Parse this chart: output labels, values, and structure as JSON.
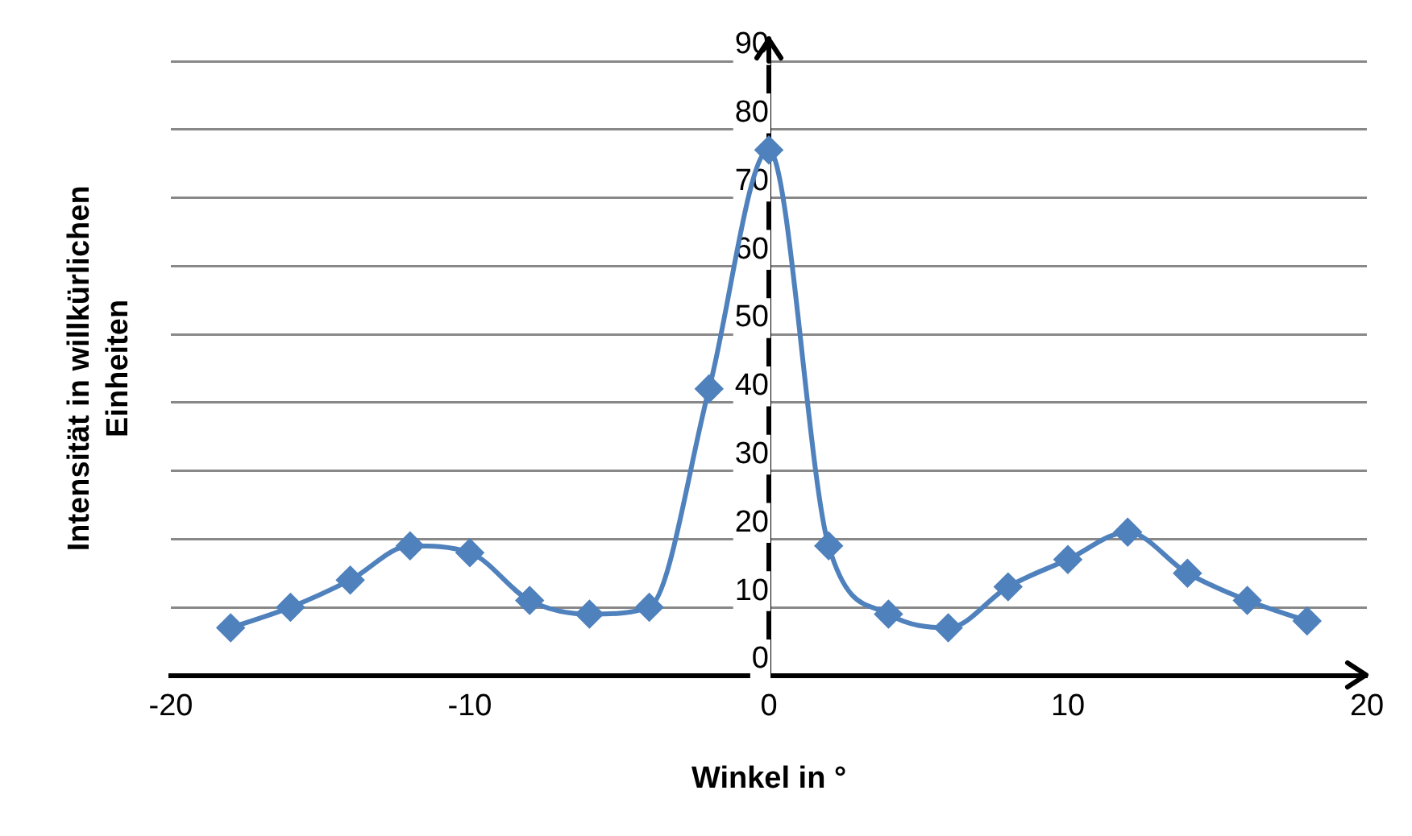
{
  "chart_data": {
    "type": "line",
    "xlabel": "Winkel in °",
    "ylabel": "Intensität in willkürlichen\nEinheiten",
    "series": [
      {
        "color": "#4f81bd",
        "x": [
          -18,
          -16,
          -14,
          -12,
          -10,
          -8,
          -6,
          -4,
          -2,
          0,
          2,
          4,
          6,
          8,
          10,
          12,
          14,
          16,
          18
        ],
        "values": [
          7,
          10,
          14,
          19,
          18,
          11,
          9,
          10,
          42,
          77,
          19,
          9,
          7,
          13,
          17,
          21,
          15,
          11,
          8
        ]
      }
    ],
    "xlim": [
      -20,
      20
    ],
    "xticks": [
      -20,
      -10,
      0,
      10,
      20
    ],
    "ylim": [
      0,
      90
    ],
    "yticks": [
      0,
      10,
      20,
      30,
      40,
      50,
      60,
      70,
      80,
      90
    ],
    "grid": "y",
    "legend": false,
    "marker": "diamond",
    "line_style": "solid"
  }
}
